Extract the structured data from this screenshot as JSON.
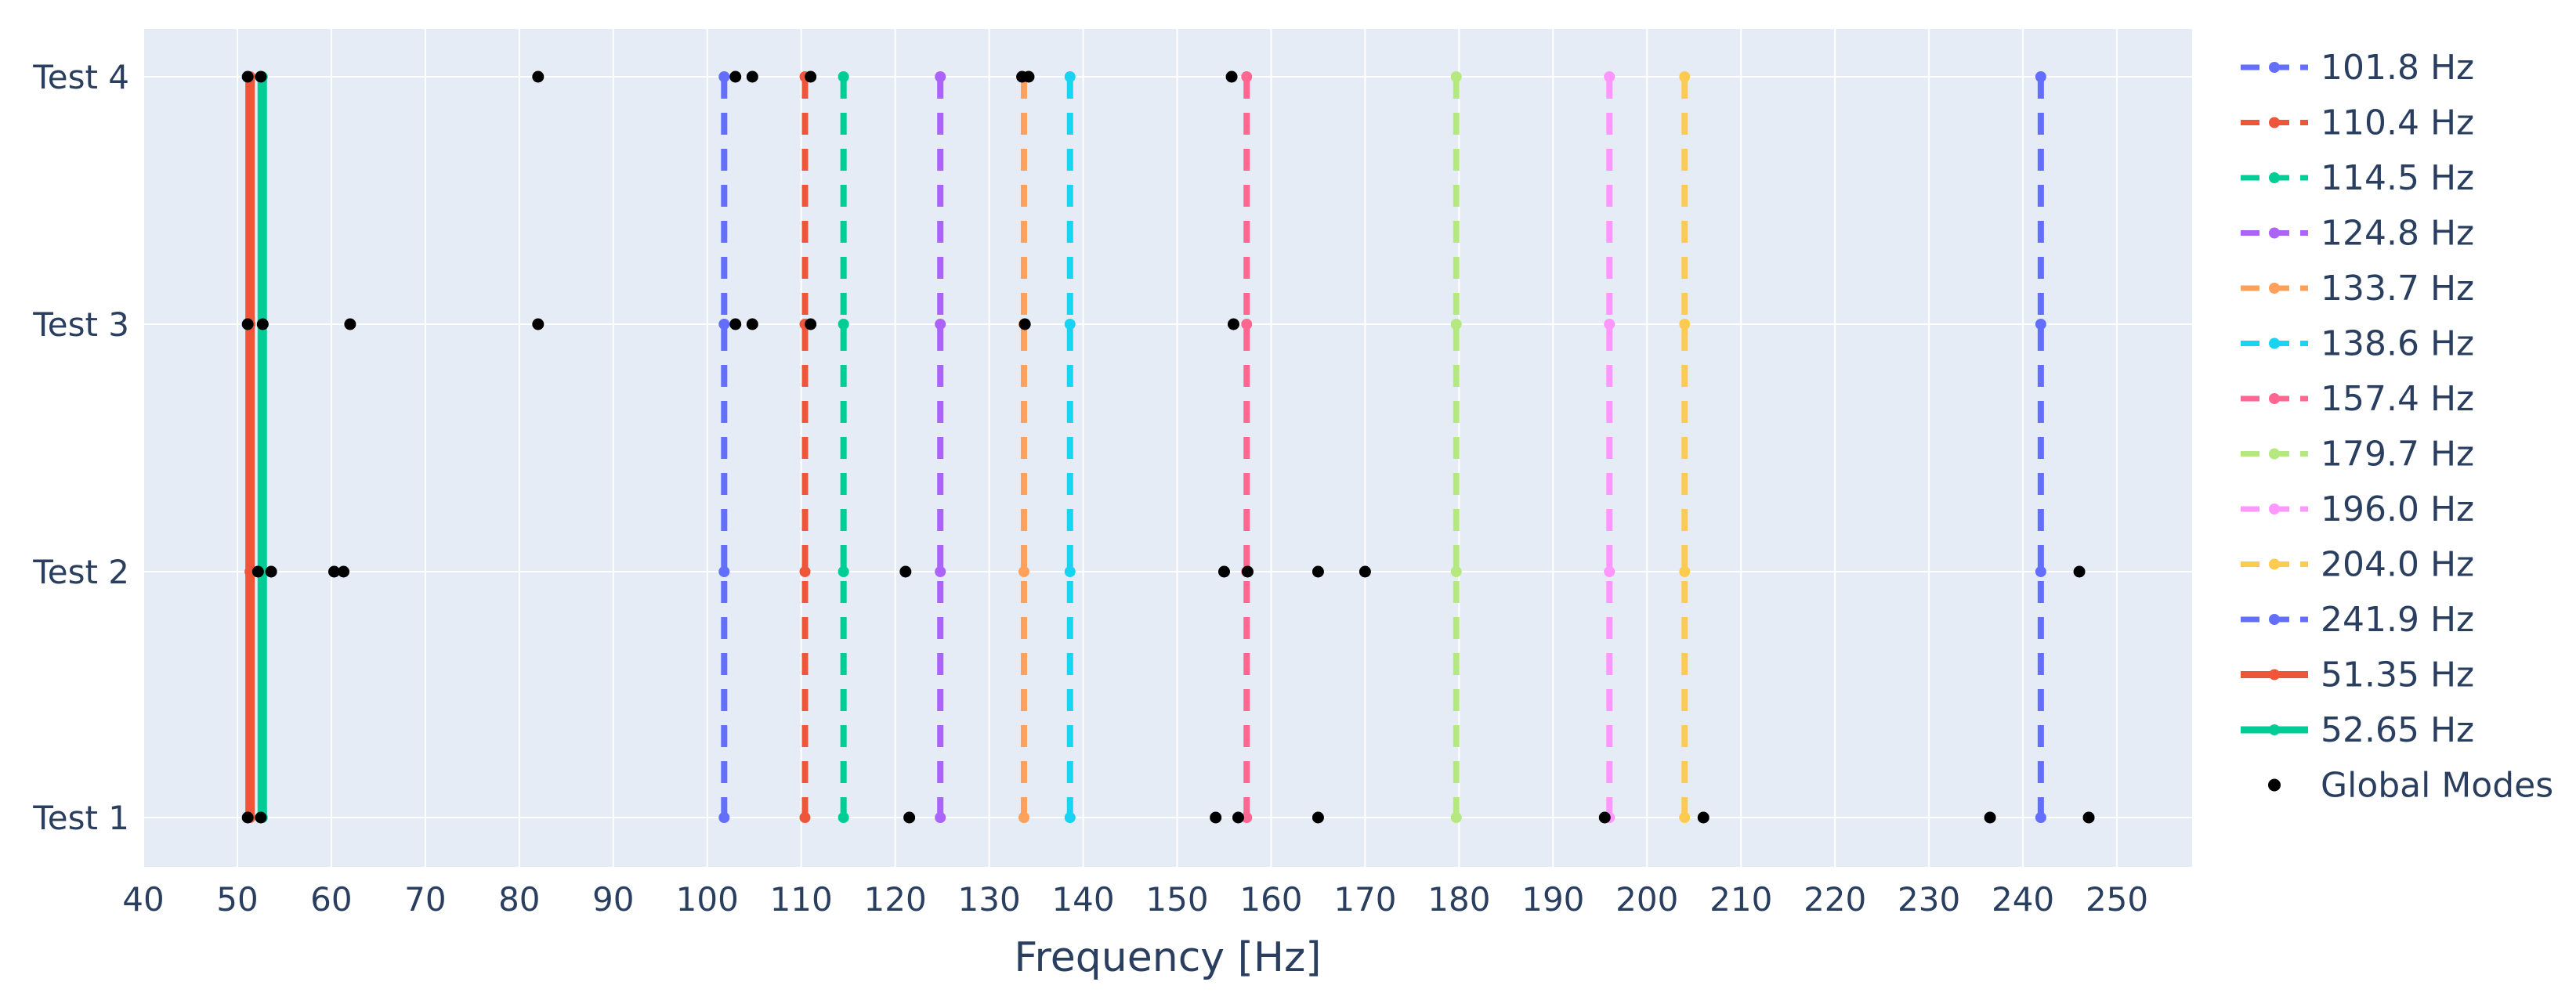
{
  "chart_data": {
    "type": "scatter",
    "title": "",
    "xlabel": "Frequency [Hz]",
    "ylabel": "",
    "xlim": [
      40,
      258
    ],
    "xticks": [
      40,
      50,
      60,
      70,
      80,
      90,
      100,
      110,
      120,
      130,
      140,
      150,
      160,
      170,
      180,
      190,
      200,
      210,
      220,
      230,
      240,
      250
    ],
    "categories": [
      "Test 1",
      "Test 2",
      "Test 3",
      "Test 4"
    ],
    "grid": true,
    "legend_position": "right",
    "background_color": "#e5ecf6",
    "series": [
      {
        "name": "101.8 Hz",
        "x": 101.8,
        "style": "dash",
        "color": "#636efa"
      },
      {
        "name": "110.4 Hz",
        "x": 110.4,
        "style": "dash",
        "color": "#ef553b"
      },
      {
        "name": "114.5 Hz",
        "x": 114.5,
        "style": "dash",
        "color": "#00cc96"
      },
      {
        "name": "124.8 Hz",
        "x": 124.8,
        "style": "dash",
        "color": "#ab63fa"
      },
      {
        "name": "133.7 Hz",
        "x": 133.7,
        "style": "dash",
        "color": "#ffa15a"
      },
      {
        "name": "138.6 Hz",
        "x": 138.6,
        "style": "dash",
        "color": "#19d3f3"
      },
      {
        "name": "157.4 Hz",
        "x": 157.4,
        "style": "dash",
        "color": "#ff6692"
      },
      {
        "name": "179.7 Hz",
        "x": 179.7,
        "style": "dash",
        "color": "#b6e880"
      },
      {
        "name": "196.0 Hz",
        "x": 196.0,
        "style": "dash",
        "color": "#ff97ff"
      },
      {
        "name": "204.0 Hz",
        "x": 204.0,
        "style": "dash",
        "color": "#fecb52"
      },
      {
        "name": "241.9 Hz",
        "x": 241.9,
        "style": "dash",
        "color": "#636efa"
      },
      {
        "name": "51.35 Hz",
        "x": 51.35,
        "style": "solid",
        "color": "#ef553b"
      },
      {
        "name": "52.65 Hz",
        "x": 52.65,
        "style": "solid",
        "color": "#00cc96"
      }
    ],
    "global_modes": {
      "name": "Global Modes",
      "color": "#000000",
      "points": {
        "Test 1": [
          51.1,
          52.5,
          121.5,
          154.1,
          156.5,
          165.0,
          195.5,
          206.0,
          236.5,
          247.0
        ],
        "Test 2": [
          52.2,
          53.6,
          60.3,
          61.3,
          121.1,
          155.0,
          157.5,
          165.0,
          170.0,
          246.0
        ],
        "Test 3": [
          51.1,
          52.7,
          62.0,
          82.0,
          103.0,
          104.8,
          111.0,
          133.8,
          156.0
        ],
        "Test 4": [
          51.1,
          52.5,
          82.0,
          103.0,
          104.8,
          111.0,
          133.5,
          134.2,
          155.8
        ]
      }
    }
  }
}
